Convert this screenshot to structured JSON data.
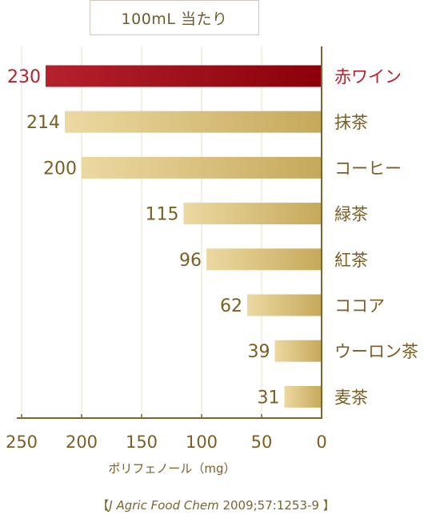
{
  "header": {
    "unit_label": "100mL 当たり"
  },
  "source": {
    "open": "【",
    "journal": "J Agric Food Chem",
    "citation": " 2009;57:1253-9 ",
    "close": "】"
  },
  "colors": {
    "highlight": "#b4222c",
    "highlight_dark": "#8b0009",
    "bar_light": "#ecd9a2",
    "bar_dark": "#c6a85a",
    "label_text": "#7a5e24",
    "axis": "#7a6530",
    "grid": "#e7e1d2"
  },
  "chart_data": {
    "type": "bar",
    "orientation": "horizontal",
    "direction": "right-to-left",
    "categories": [
      "赤ワイン",
      "抹茶",
      "コーヒー",
      "緑茶",
      "紅茶",
      "ココア",
      "ウーロン茶",
      "麦茶"
    ],
    "values": [
      230,
      214,
      200,
      115,
      96,
      62,
      39,
      31
    ],
    "value_labels": [
      "230",
      "214",
      "200",
      "115",
      "96",
      "62",
      "39",
      "31"
    ],
    "highlight_index": 0,
    "xlabel": "ポリフェノール（mg）",
    "xlim": [
      0,
      250
    ],
    "xticks": [
      250,
      200,
      150,
      100,
      50,
      0
    ],
    "xtick_labels": [
      "250",
      "200",
      "150",
      "100",
      "50",
      "0"
    ],
    "grid": true
  }
}
